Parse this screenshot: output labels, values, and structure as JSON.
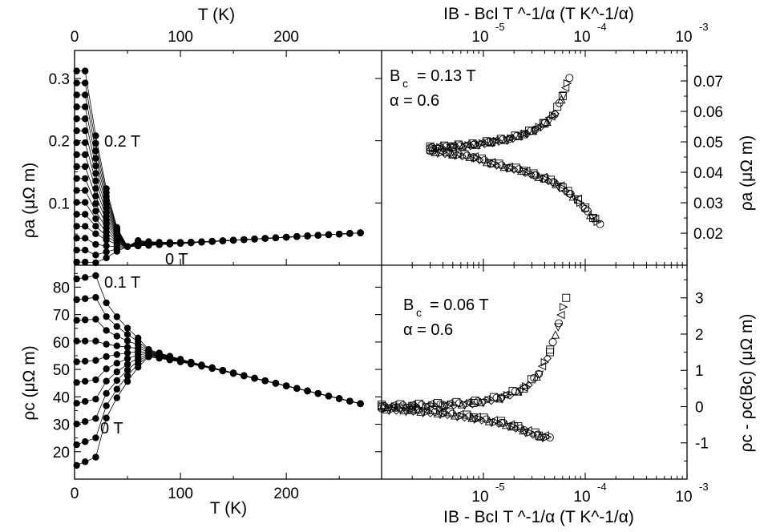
{
  "chart_data": [
    {
      "panel": "top-left",
      "type": "line",
      "xlabel_top": "T (K)",
      "ylabel": "ρa (μΩ m)",
      "xlim": [
        0,
        290
      ],
      "ylim": [
        0,
        0.345
      ],
      "xticks": [
        0,
        100,
        200
      ],
      "yticks": [
        0.1,
        0.2,
        0.3
      ],
      "annotations": [
        "0.2 T",
        "0 T"
      ],
      "temperatures": [
        2,
        10,
        20,
        30,
        40,
        50,
        60,
        70,
        80,
        90,
        100,
        110,
        120,
        130,
        140,
        150,
        160,
        170,
        180,
        190,
        200,
        210,
        220,
        230,
        240,
        250,
        260,
        270
      ],
      "series_range": {
        "lowest_field_start": 0.005,
        "highest_field_start": 0.312,
        "converged_value_at_50K": 0.03,
        "value_at_270K": 0.052
      },
      "series_count": 17
    },
    {
      "panel": "top-right",
      "type": "scatter",
      "xlabel_top": "IB - BcI T ^-1/α (T K^-1/α)",
      "ylabel": "ρa (μΩ m)",
      "xscale": "log",
      "xlim": [
        1e-06,
        0.001
      ],
      "ylim": [
        0.0095,
        0.08
      ],
      "yticks": [
        0.02,
        0.03,
        0.04,
        0.05,
        0.06,
        0.07
      ],
      "xtick_labels": [
        "10",
        "-5",
        "10",
        "-4",
        "10",
        "-3"
      ],
      "annotations": [
        "B",
        "c",
        "= 0.13 T",
        "α = 0.6"
      ],
      "upper_branch": {
        "x": [
          3e-06,
          5e-06,
          8e-06,
          1.2e-05,
          1.8e-05,
          2.5e-05,
          3.2e-05,
          4e-05,
          5e-05,
          6e-05,
          7e-05
        ],
        "y": [
          0.048,
          0.0485,
          0.049,
          0.05,
          0.051,
          0.0525,
          0.054,
          0.056,
          0.059,
          0.065,
          0.071
        ]
      },
      "lower_branch": {
        "x": [
          3e-06,
          5e-06,
          8e-06,
          1.2e-05,
          1.8e-05,
          2.5e-05,
          3.2e-05,
          4e-05,
          5e-05,
          6e-05,
          7e-05,
          8.5e-05,
          0.0001,
          0.00012,
          0.00014
        ],
        "y": [
          0.047,
          0.046,
          0.045,
          0.043,
          0.0415,
          0.0405,
          0.039,
          0.038,
          0.0365,
          0.035,
          0.033,
          0.031,
          0.028,
          0.025,
          0.023
        ]
      }
    },
    {
      "panel": "bottom-left",
      "type": "line",
      "xlabel": "T (K)",
      "ylabel": "ρc (μΩ m)",
      "xlim": [
        0,
        290
      ],
      "ylim": [
        10,
        88
      ],
      "xticks": [
        0,
        100,
        200
      ],
      "yticks": [
        20,
        30,
        40,
        50,
        60,
        70,
        80
      ],
      "annotations": [
        "0.1 T",
        "0 T"
      ],
      "temperatures": [
        2,
        10,
        20,
        30,
        40,
        50,
        60,
        70,
        80,
        90,
        100,
        110,
        120,
        130,
        140,
        150,
        160,
        170,
        180,
        190,
        200,
        210,
        220,
        230,
        240,
        250,
        260,
        270
      ],
      "series_range": {
        "lowest_field_start": 15,
        "highest_field_start": 83,
        "value_at_60K": 57,
        "value_at_270K": 37.5
      },
      "series_count": 10
    },
    {
      "panel": "bottom-right",
      "type": "scatter",
      "xlabel": "IB - BcI T ^-1/α (T K^-1/α)",
      "ylabel": "ρc - ρc(Bc) (μΩ m)",
      "xscale": "log",
      "xlim": [
        1e-06,
        0.001
      ],
      "ylim": [
        -2,
        3.9
      ],
      "yticks": [
        -1,
        0,
        1,
        2,
        3
      ],
      "xtick_labels": [
        "10",
        "-5",
        "10",
        "-4",
        "10",
        "-3"
      ],
      "annotations": [
        "B",
        "c",
        "= 0.06 T",
        "α = 0.6"
      ],
      "upper_branch": {
        "x": [
          1e-06,
          2e-06,
          4e-06,
          8e-06,
          1.5e-05,
          2.5e-05,
          3.5e-05,
          4.5e-05,
          5.5e-05,
          6.5e-05
        ],
        "y": [
          0.0,
          0.02,
          0.05,
          0.1,
          0.25,
          0.5,
          0.9,
          1.5,
          2.3,
          3.0
        ]
      },
      "lower_branch": {
        "x": [
          1e-06,
          2e-06,
          4e-06,
          8e-06,
          1.5e-05,
          2e-05,
          2.5e-05,
          3.5e-05,
          4.5e-05
        ],
        "y": [
          -0.05,
          -0.1,
          -0.18,
          -0.3,
          -0.45,
          -0.55,
          -0.65,
          -0.8,
          -0.85
        ]
      }
    }
  ]
}
